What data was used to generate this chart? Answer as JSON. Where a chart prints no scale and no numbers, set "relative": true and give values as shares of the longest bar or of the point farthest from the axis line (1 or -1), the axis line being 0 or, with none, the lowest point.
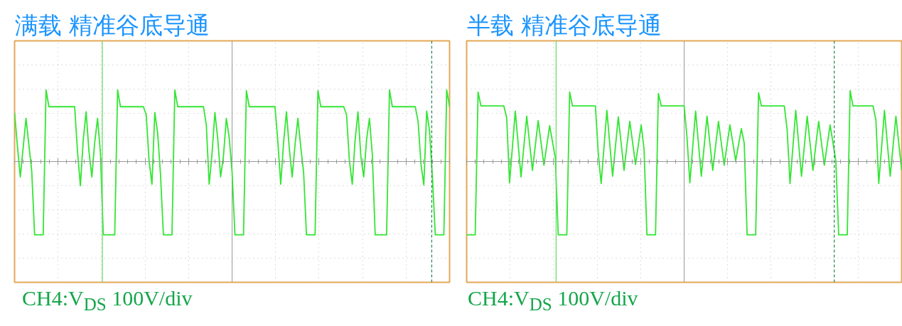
{
  "chart_data": [
    {
      "type": "line",
      "title": "满载  精准谷底导通",
      "annotations": [
        "CH4:V$_{DS}$ 100V/div"
      ],
      "relative": true,
      "grid": true,
      "categories": [
        null,
        null,
        null,
        null,
        null,
        null,
        null,
        null,
        null,
        null,
        null,
        null,
        null,
        null,
        null,
        null,
        null,
        null,
        null,
        null,
        null,
        null,
        null,
        null,
        null,
        null,
        null,
        null,
        null,
        null,
        null,
        null,
        null,
        null,
        null,
        null,
        null,
        null,
        null,
        null,
        null,
        null,
        null,
        null,
        null,
        null,
        null,
        null,
        null,
        null,
        null,
        null,
        null,
        null,
        null,
        null,
        null,
        null,
        null,
        null,
        null,
        null,
        null,
        null,
        null,
        null,
        null,
        null,
        null,
        null,
        null,
        null,
        null,
        null,
        null,
        null,
        null,
        null,
        null,
        null,
        null,
        null,
        null,
        null,
        null,
        null,
        null,
        null,
        null,
        null,
        null,
        null,
        null,
        null,
        null,
        null,
        null,
        null,
        null,
        null,
        null,
        null,
        null,
        null,
        null,
        null,
        null,
        null,
        null,
        null,
        null,
        null,
        null,
        null,
        null,
        null,
        null,
        null,
        null,
        null,
        null,
        null,
        null,
        null,
        null,
        null,
        null,
        null,
        null,
        null,
        null,
        null,
        null,
        null,
        null,
        null,
        null,
        null,
        null,
        null,
        null,
        null,
        null,
        null,
        null,
        null,
        null,
        null,
        null,
        null,
        null,
        null,
        null
      ],
      "series": [
        {
          "color": "#33e633",
          "values": [
            0.67,
            0.21,
            -0.21,
            0.19,
            0.59,
            0.23,
            -0.13,
            -1,
            -1,
            -1,
            -1,
            0.98,
            0.75,
            0.75,
            0.75,
            0.75,
            0.75,
            0.75,
            0.75,
            0.75,
            0.75,
            0.75,
            0.13,
            -0.33,
            0.3,
            0.68,
            0.14,
            -0.21,
            0.26,
            0.59,
            0.12,
            -1,
            -1,
            -1,
            -1,
            -1,
            0.98,
            0.75,
            0.75,
            0.75,
            0.75,
            0.75,
            0.75,
            0.75,
            0.75,
            0.75,
            0.64,
            0.01,
            -0.31,
            0.67,
            0.39,
            -0.18,
            -1,
            -1,
            -1,
            -1,
            0.98,
            0.75,
            0.75,
            0.75,
            0.75,
            0.75,
            0.75,
            0.75,
            0.75,
            0.75,
            0.75,
            0.5,
            -0.31,
            0.11,
            0.67,
            0.31,
            -0.21,
            0.08,
            0.59,
            0.33,
            -0.14,
            -1,
            -1,
            -1,
            -1,
            0.97,
            0.75,
            0.75,
            0.75,
            0.75,
            0.75,
            0.75,
            0.75,
            0.75,
            0.75,
            0.75,
            0.27,
            -0.31,
            0.26,
            0.68,
            0.18,
            -0.21,
            0.23,
            0.59,
            0.2,
            -0.15,
            -1,
            -1,
            -1,
            -1,
            0.97,
            0.75,
            0.75,
            0.75,
            0.75,
            0.75,
            0.75,
            0.75,
            0.75,
            0.75,
            0.64,
            0.01,
            -0.31,
            0.3,
            0.68,
            0.07,
            -0.21,
            0.3,
            0.59,
            0.1,
            -1,
            -1,
            -1,
            -1,
            -1,
            0.98,
            0.75,
            0.75,
            0.75,
            0.75,
            0.75,
            0.75,
            0.75,
            0.75,
            0.75,
            0.55,
            -0.03,
            -0.32,
            0.69,
            0.42,
            -0.21,
            -1,
            -1,
            -1,
            -1,
            0.98,
            0.75
          ]
        }
      ]
    },
    {
      "type": "line",
      "title": "半载  精准谷底导通",
      "annotations": [
        "CH4:V$_{DS}$ 100V/div"
      ],
      "relative": true,
      "grid": true,
      "categories": [
        null,
        null,
        null,
        null,
        null,
        null,
        null,
        null,
        null,
        null,
        null,
        null,
        null,
        null,
        null,
        null,
        null,
        null,
        null,
        null,
        null,
        null,
        null,
        null,
        null,
        null,
        null,
        null,
        null,
        null,
        null,
        null,
        null,
        null,
        null,
        null,
        null,
        null,
        null,
        null,
        null,
        null,
        null,
        null,
        null,
        null,
        null,
        null,
        null,
        null,
        null,
        null,
        null,
        null,
        null,
        null,
        null,
        null,
        null,
        null,
        null,
        null,
        null,
        null,
        null,
        null,
        null,
        null,
        null,
        null,
        null,
        null,
        null,
        null,
        null,
        null,
        null,
        null,
        null,
        null,
        null,
        null,
        null,
        null,
        null,
        null,
        null,
        null,
        null,
        null,
        null,
        null,
        null,
        null,
        null,
        null,
        null,
        null,
        null,
        null,
        null,
        null,
        null,
        null,
        null,
        null,
        null,
        null,
        null,
        null,
        null,
        null,
        null,
        null,
        null,
        null,
        null,
        null,
        null,
        null,
        null,
        null,
        null,
        null,
        null,
        null,
        null,
        null,
        null,
        null,
        null,
        null,
        null,
        null,
        null,
        null,
        null,
        null,
        null,
        null,
        null,
        null,
        null,
        null,
        null,
        null,
        null,
        null,
        null,
        null,
        null,
        null,
        null
      ],
      "series": [
        {
          "color": "#33e633",
          "values": [
            -1,
            -1,
            -1,
            -1,
            0.95,
            0.76,
            0.76,
            0.76,
            0.76,
            0.76,
            0.76,
            0.76,
            0.76,
            0.76,
            0.6,
            -0.29,
            0.2,
            0.69,
            0.24,
            -0.21,
            0.21,
            0.62,
            0.25,
            -0.12,
            0.22,
            0.56,
            0.26,
            -0.05,
            0.22,
            0.49,
            0.27,
            0.05,
            -1,
            -1,
            -1,
            -1,
            0.95,
            0.76,
            0.76,
            0.76,
            0.76,
            0.76,
            0.76,
            0.76,
            0.76,
            0.76,
            0.11,
            -0.3,
            0.2,
            0.7,
            0.25,
            -0.2,
            0.21,
            0.61,
            0.25,
            -0.12,
            0.22,
            0.55,
            0.26,
            -0.04,
            0.23,
            0.5,
            0.17,
            -1,
            -1,
            -1,
            -1,
            0.93,
            0.76,
            0.76,
            0.76,
            0.76,
            0.76,
            0.76,
            0.76,
            0.76,
            0.76,
            0.33,
            -0.29,
            0.2,
            0.69,
            0.25,
            -0.2,
            0.21,
            0.62,
            0.25,
            -0.12,
            0.22,
            0.55,
            0.25,
            -0.05,
            0.23,
            0.5,
            0.26,
            0.01,
            0.23,
            0.45,
            0.25,
            -1,
            -1,
            -1,
            -1,
            0.94,
            0.76,
            0.76,
            0.76,
            0.76,
            0.76,
            0.76,
            0.76,
            0.76,
            0.76,
            0.43,
            -0.3,
            0.2,
            0.7,
            0.25,
            -0.2,
            0.21,
            0.62,
            0.25,
            -0.12,
            0.22,
            0.55,
            0.25,
            -0.05,
            0.23,
            0.5,
            0.26,
            0.01,
            -1,
            -1,
            -1,
            -1,
            0.97,
            0.76,
            0.76,
            0.76,
            0.76,
            0.76,
            0.76,
            0.76,
            0.76,
            0.57,
            -0.3,
            0.2,
            0.7,
            0.25,
            -0.2,
            0.21,
            0.62,
            0.25,
            -0.12
          ]
        }
      ]
    }
  ]
}
